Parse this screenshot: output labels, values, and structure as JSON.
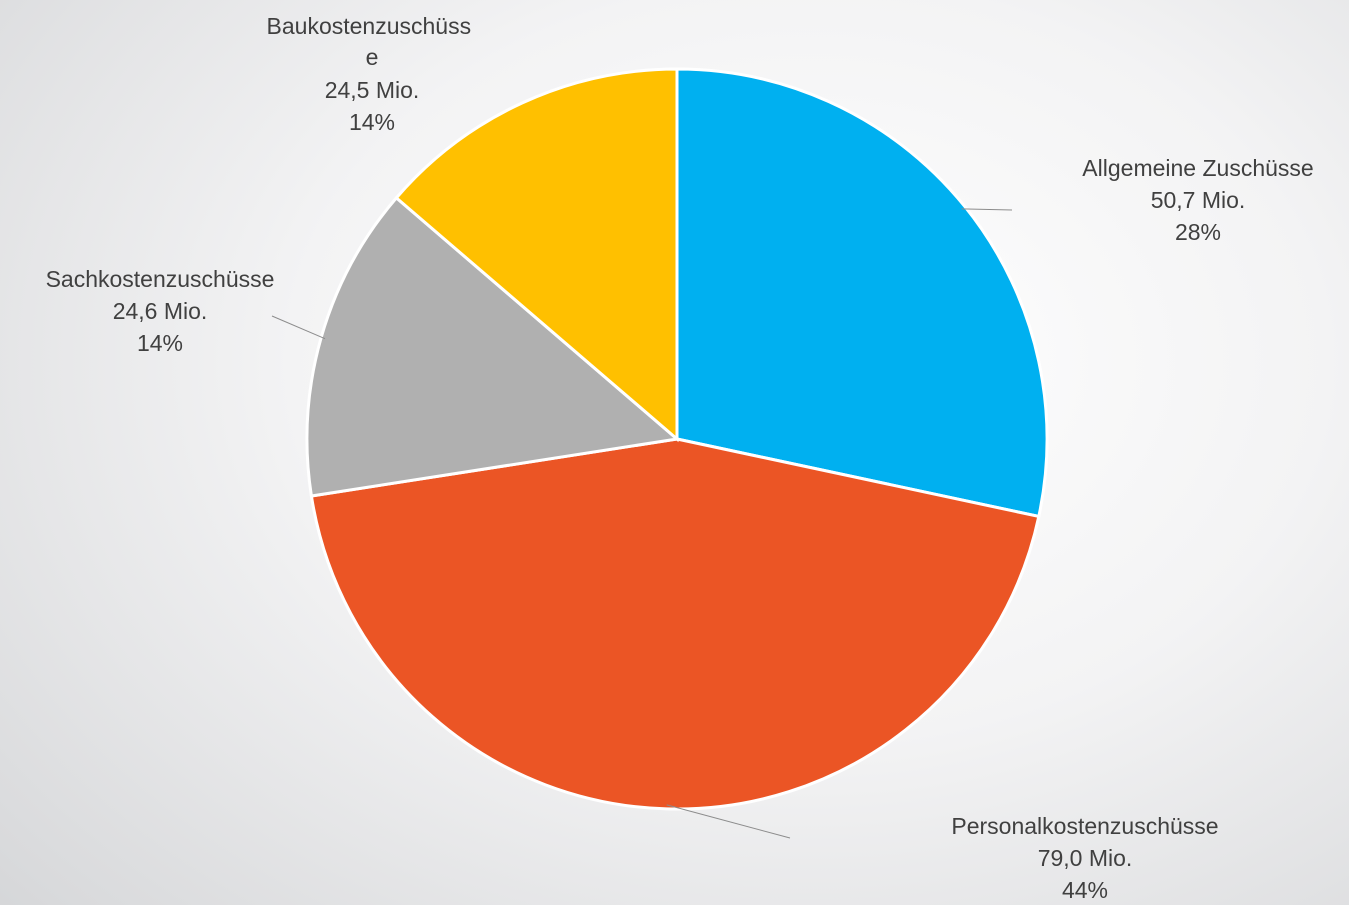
{
  "chart_data": {
    "type": "pie",
    "title": "",
    "start_angle_deg": 0,
    "direction": "clockwise",
    "slices": [
      {
        "name": "Allgemeine Zuschüsse",
        "value_text": "50,7 Mio.",
        "pct_text": "28%",
        "value": 50.7,
        "color": "#00B0F0"
      },
      {
        "name": "Personalkostenzuschüsse",
        "value_text": "79,0 Mio.",
        "pct_text": "44%",
        "value": 79.0,
        "color": "#EB5525"
      },
      {
        "name": "Sachkostenzuschüsse",
        "value_text": "24,6 Mio.",
        "pct_text": "14%",
        "value": 24.6,
        "color": "#B0B0B0"
      },
      {
        "name": "Baukostenzuschüsse",
        "value_text": "24,5 Mio.",
        "pct_text": "14%",
        "value": 24.5,
        "color": "#FFC000"
      }
    ]
  }
}
